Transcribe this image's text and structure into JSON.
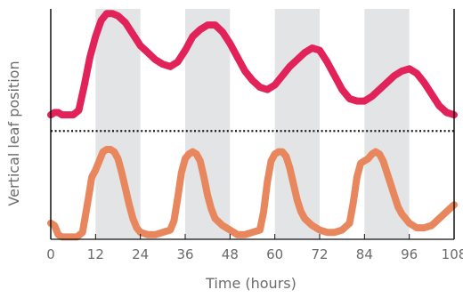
{
  "chart_data": {
    "type": "line",
    "xlabel": "Time (hours)",
    "ylabel": "Vertical leaf position",
    "xlim": [
      0,
      108
    ],
    "ylim": [
      0,
      1
    ],
    "x_ticks": [
      0,
      12,
      24,
      36,
      48,
      60,
      72,
      84,
      96,
      108
    ],
    "x_tick_labels": [
      "0",
      "12",
      "24",
      "36",
      "48",
      "60",
      "72",
      "84",
      "96",
      "108"
    ],
    "shaded_intervals": [
      [
        12,
        24
      ],
      [
        36,
        48
      ],
      [
        60,
        72
      ],
      [
        84,
        96
      ]
    ],
    "divider": {
      "style": "dotted",
      "y": 0.47
    },
    "colors": {
      "shading": "#e3e4e6",
      "axis": "#111111",
      "divider": "#1a1a1a",
      "labels": "#6b6b6b"
    },
    "series": [
      {
        "color": "#e2235a",
        "points": [
          [
            0,
            0.54
          ],
          [
            1,
            0.55
          ],
          [
            2,
            0.55
          ],
          [
            3,
            0.54
          ],
          [
            4,
            0.54
          ],
          [
            6,
            0.54
          ],
          [
            7.5,
            0.56
          ],
          [
            9,
            0.67
          ],
          [
            10.5,
            0.79
          ],
          [
            12,
            0.88
          ],
          [
            13.5,
            0.95
          ],
          [
            15,
            0.98
          ],
          [
            16.5,
            0.98
          ],
          [
            18,
            0.97
          ],
          [
            20,
            0.94
          ],
          [
            22,
            0.89
          ],
          [
            24,
            0.84
          ],
          [
            26,
            0.81
          ],
          [
            28,
            0.78
          ],
          [
            30,
            0.76
          ],
          [
            32,
            0.75
          ],
          [
            34,
            0.77
          ],
          [
            36,
            0.82
          ],
          [
            38,
            0.88
          ],
          [
            40,
            0.91
          ],
          [
            42,
            0.93
          ],
          [
            44,
            0.93
          ],
          [
            46,
            0.9
          ],
          [
            48,
            0.85
          ],
          [
            50,
            0.79
          ],
          [
            52,
            0.73
          ],
          [
            54,
            0.69
          ],
          [
            56,
            0.66
          ],
          [
            58,
            0.65
          ],
          [
            60,
            0.67
          ],
          [
            62,
            0.71
          ],
          [
            64,
            0.75
          ],
          [
            66,
            0.78
          ],
          [
            68,
            0.81
          ],
          [
            70,
            0.83
          ],
          [
            72,
            0.82
          ],
          [
            74,
            0.77
          ],
          [
            76,
            0.71
          ],
          [
            78,
            0.65
          ],
          [
            80,
            0.61
          ],
          [
            82,
            0.6
          ],
          [
            84,
            0.6
          ],
          [
            86,
            0.62
          ],
          [
            88,
            0.65
          ],
          [
            90,
            0.68
          ],
          [
            92,
            0.71
          ],
          [
            94,
            0.73
          ],
          [
            96,
            0.74
          ],
          [
            98,
            0.72
          ],
          [
            100,
            0.68
          ],
          [
            102,
            0.63
          ],
          [
            104,
            0.58
          ],
          [
            106,
            0.55
          ],
          [
            108,
            0.54
          ]
        ]
      },
      {
        "color": "#e8875d",
        "points": [
          [
            0,
            0.07
          ],
          [
            1,
            0.06
          ],
          [
            2,
            0.02
          ],
          [
            3,
            0.01
          ],
          [
            5,
            0.01
          ],
          [
            7,
            0.01
          ],
          [
            8.5,
            0.03
          ],
          [
            10,
            0.17
          ],
          [
            11,
            0.27
          ],
          [
            12,
            0.3
          ],
          [
            13,
            0.34
          ],
          [
            14,
            0.38
          ],
          [
            15,
            0.39
          ],
          [
            16,
            0.39
          ],
          [
            17,
            0.38
          ],
          [
            18,
            0.35
          ],
          [
            19,
            0.29
          ],
          [
            20,
            0.22
          ],
          [
            21,
            0.15
          ],
          [
            22,
            0.09
          ],
          [
            23,
            0.05
          ],
          [
            24,
            0.03
          ],
          [
            26,
            0.02
          ],
          [
            28,
            0.02
          ],
          [
            30,
            0.03
          ],
          [
            32,
            0.04
          ],
          [
            33,
            0.08
          ],
          [
            34,
            0.18
          ],
          [
            35,
            0.29
          ],
          [
            36,
            0.35
          ],
          [
            37,
            0.37
          ],
          [
            38,
            0.38
          ],
          [
            39,
            0.37
          ],
          [
            40,
            0.34
          ],
          [
            41,
            0.27
          ],
          [
            42,
            0.19
          ],
          [
            43,
            0.13
          ],
          [
            44,
            0.09
          ],
          [
            46,
            0.06
          ],
          [
            48,
            0.04
          ],
          [
            50,
            0.02
          ],
          [
            52,
            0.02
          ],
          [
            54,
            0.03
          ],
          [
            56,
            0.04
          ],
          [
            57,
            0.12
          ],
          [
            58,
            0.25
          ],
          [
            59,
            0.34
          ],
          [
            60,
            0.37
          ],
          [
            61,
            0.38
          ],
          [
            62,
            0.38
          ],
          [
            63,
            0.36
          ],
          [
            64,
            0.31
          ],
          [
            65,
            0.24
          ],
          [
            66,
            0.17
          ],
          [
            67,
            0.12
          ],
          [
            68,
            0.09
          ],
          [
            70,
            0.06
          ],
          [
            72,
            0.04
          ],
          [
            74,
            0.03
          ],
          [
            76,
            0.03
          ],
          [
            78,
            0.04
          ],
          [
            80,
            0.07
          ],
          [
            81,
            0.16
          ],
          [
            82,
            0.27
          ],
          [
            83,
            0.33
          ],
          [
            84,
            0.34
          ],
          [
            85,
            0.35
          ],
          [
            86,
            0.37
          ],
          [
            87,
            0.38
          ],
          [
            88,
            0.37
          ],
          [
            89,
            0.34
          ],
          [
            90,
            0.29
          ],
          [
            91,
            0.24
          ],
          [
            92,
            0.19
          ],
          [
            93,
            0.14
          ],
          [
            94,
            0.11
          ],
          [
            96,
            0.07
          ],
          [
            98,
            0.05
          ],
          [
            100,
            0.05
          ],
          [
            102,
            0.06
          ],
          [
            104,
            0.09
          ],
          [
            106,
            0.12
          ],
          [
            108,
            0.15
          ]
        ]
      }
    ]
  }
}
